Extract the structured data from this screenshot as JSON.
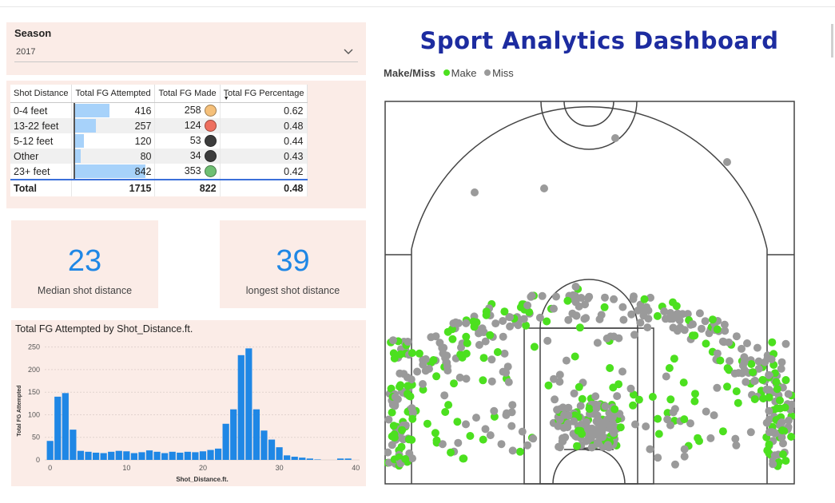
{
  "slicer": {
    "label": "Season",
    "value": "2017"
  },
  "table": {
    "headers": [
      "Shot Distance",
      "Total FG Attempted",
      "Total FG Made",
      "Total FG Percentage"
    ],
    "rows": [
      {
        "distance": "0-4 feet",
        "attempted": "416",
        "made": "258",
        "pct": "0.62",
        "bar": 0.494,
        "dot": "#f5c07a"
      },
      {
        "distance": "13-22 feet",
        "attempted": "257",
        "made": "124",
        "pct": "0.48",
        "bar": 0.305,
        "dot": "#ee6f5f"
      },
      {
        "distance": "5-12 feet",
        "attempted": "120",
        "made": "53",
        "pct": "0.44",
        "bar": 0.143,
        "dot": "#3c3c3c"
      },
      {
        "distance": "Other",
        "attempted": "80",
        "made": "34",
        "pct": "0.43",
        "bar": 0.095,
        "dot": "#3c3c3c"
      },
      {
        "distance": "23+ feet",
        "attempted": "842",
        "made": "353",
        "pct": "0.42",
        "bar": 1.0,
        "dot": "#6fbf73"
      }
    ],
    "total": {
      "label": "Total",
      "attempted": "1715",
      "made": "822",
      "pct": "0.48"
    }
  },
  "cards": [
    {
      "value": "23",
      "caption": "Median shot distance"
    },
    {
      "value": "39",
      "caption": "longest shot distance"
    }
  ],
  "title": "Sport Analytics Dashboard",
  "legend": {
    "title": "Make/Miss",
    "make": "Make",
    "miss": "Miss",
    "make_color": "#4ce01f",
    "miss_color": "#9a9a9a"
  },
  "chart_data": {
    "type": "bar",
    "title": "Total FG Attempted by Shot_Distance.ft.",
    "xlabel": "Shot_Distance.ft.",
    "ylabel": "Total FG Attempted",
    "color": "#1f87e5",
    "x": [
      0,
      1,
      2,
      3,
      4,
      5,
      6,
      7,
      8,
      9,
      10,
      11,
      12,
      13,
      14,
      15,
      16,
      17,
      18,
      19,
      20,
      21,
      22,
      23,
      24,
      25,
      26,
      27,
      28,
      29,
      30,
      31,
      32,
      33,
      34,
      35,
      36,
      37,
      38,
      39
    ],
    "values": [
      42,
      140,
      148,
      67,
      20,
      18,
      16,
      15,
      18,
      20,
      19,
      15,
      17,
      21,
      18,
      15,
      18,
      16,
      18,
      17,
      19,
      22,
      25,
      80,
      112,
      232,
      247,
      112,
      65,
      45,
      28,
      10,
      7,
      5,
      3,
      1,
      0,
      0,
      3,
      3
    ],
    "xticks": [
      0,
      10,
      20,
      30,
      40
    ],
    "yticks": [
      0,
      50,
      100,
      150,
      200,
      250
    ],
    "ylim": [
      0,
      260
    ],
    "xlim": [
      -0.7,
      40.5
    ]
  }
}
